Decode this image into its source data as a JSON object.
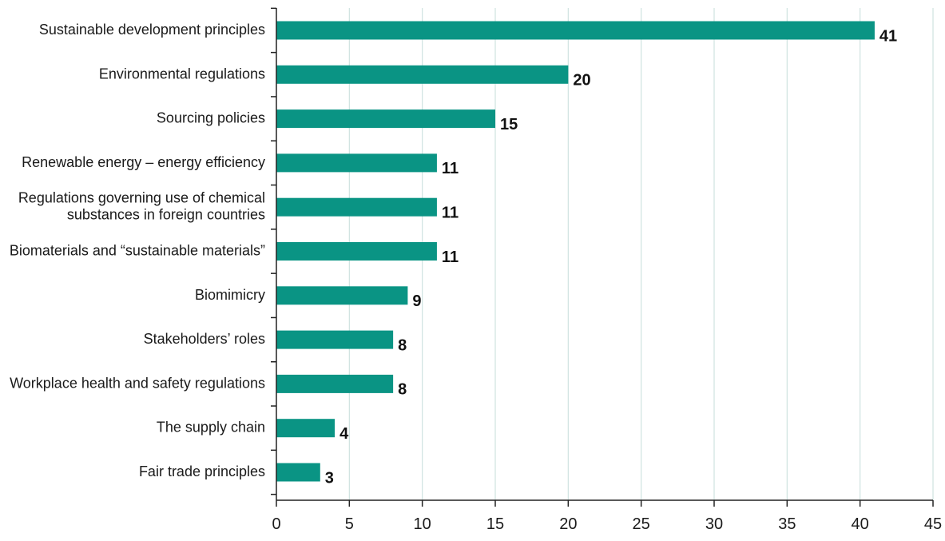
{
  "chart_data": {
    "type": "bar",
    "orientation": "horizontal",
    "categories": [
      [
        "Sustainable development principles"
      ],
      [
        "Environmental regulations"
      ],
      [
        "Sourcing policies"
      ],
      [
        "Renewable energy – energy efficiency"
      ],
      [
        "Regulations governing use of chemical",
        "substances in foreign countries"
      ],
      [
        "Biomaterials and “sustainable materials”"
      ],
      [
        "Biomimicry"
      ],
      [
        "Stakeholders’ roles"
      ],
      [
        "Workplace health and safety regulations"
      ],
      [
        "The supply chain"
      ],
      [
        "Fair trade principles"
      ]
    ],
    "values": [
      41,
      20,
      15,
      11,
      11,
      11,
      9,
      8,
      8,
      4,
      3
    ],
    "value_labels": [
      "41",
      "20",
      "15",
      "11",
      "11",
      "11",
      "9",
      "8",
      "8",
      "4",
      "3"
    ],
    "xlim": [
      0,
      45
    ],
    "xticks": [
      0,
      5,
      10,
      15,
      20,
      25,
      30,
      35,
      40,
      45
    ],
    "xtick_labels": [
      "0",
      "5",
      "10",
      "15",
      "20",
      "25",
      "30",
      "35",
      "40",
      "45"
    ],
    "grid": "vertical",
    "colors": {
      "bar": "#0a9484",
      "grid": "#cfe3e0",
      "axis": "#222222",
      "text": "#1a1a1a"
    }
  }
}
